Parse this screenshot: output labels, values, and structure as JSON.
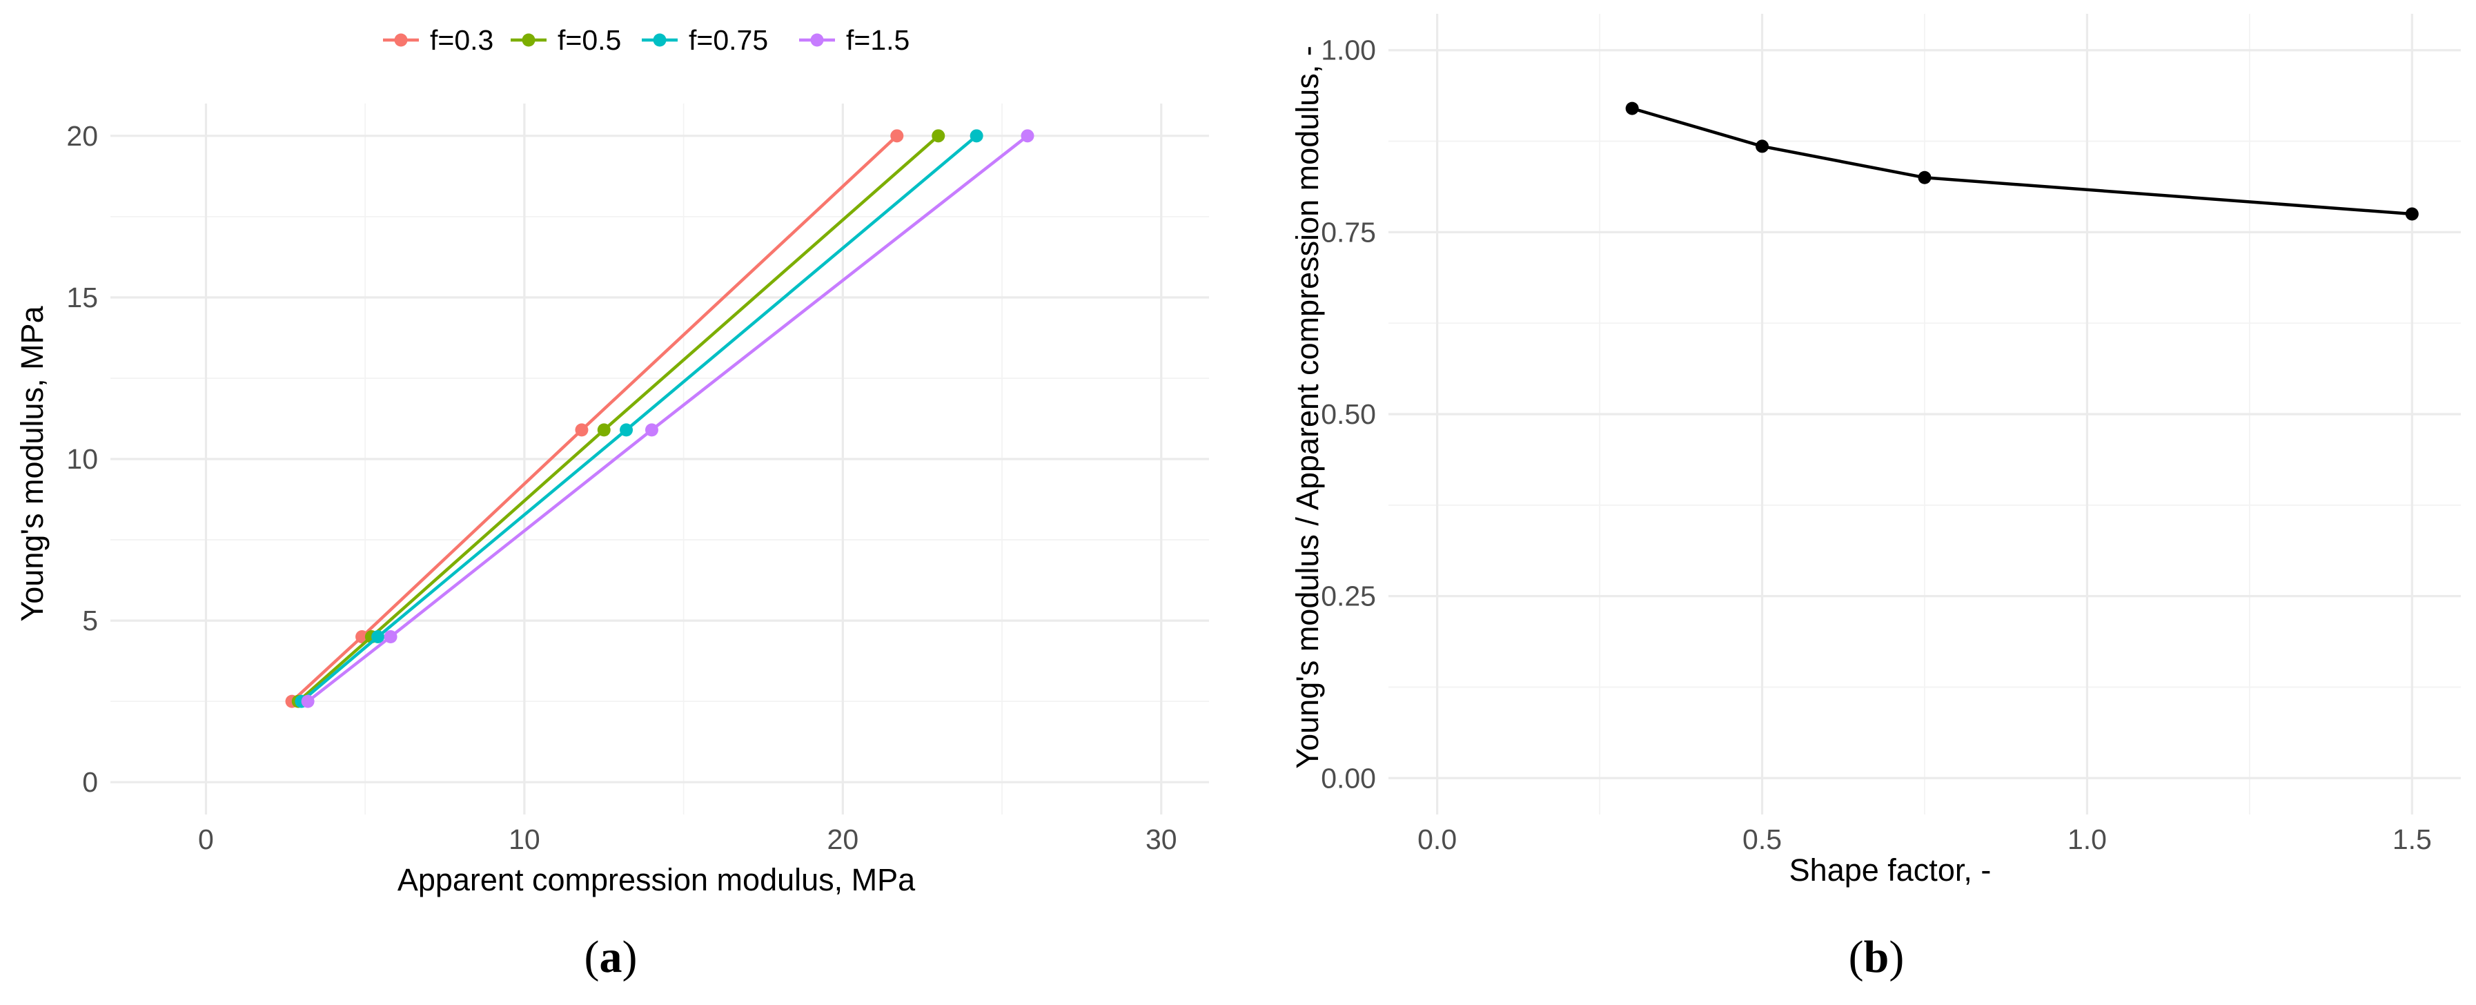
{
  "chart_data": [
    {
      "type": "line",
      "panel_label": "a",
      "xlabel": "Apparent compression modulus, MPa",
      "ylabel": "Young's modulus, MPa",
      "xlim": [
        -3.0,
        31.5
      ],
      "ylim": [
        -1.0,
        21.0
      ],
      "xticks": [
        0,
        10,
        20,
        30
      ],
      "yticks": [
        0,
        5,
        10,
        15,
        20
      ],
      "grid": true,
      "legend_position": "top",
      "series": [
        {
          "name": "f=0.3",
          "color": "#F8766D",
          "x": [
            2.7,
            4.9,
            11.8,
            21.7
          ],
          "y": [
            2.5,
            4.5,
            10.9,
            20
          ]
        },
        {
          "name": "f=0.5",
          "color": "#7CAE00",
          "x": [
            2.9,
            5.2,
            12.5,
            23.0
          ],
          "y": [
            2.5,
            4.5,
            10.9,
            20
          ]
        },
        {
          "name": "f=0.75",
          "color": "#00BFC4",
          "x": [
            3.0,
            5.4,
            13.2,
            24.2
          ],
          "y": [
            2.5,
            4.5,
            10.9,
            20
          ]
        },
        {
          "name": "f=1.5",
          "color": "#C77CFF",
          "x": [
            3.2,
            5.8,
            14.0,
            25.8
          ],
          "y": [
            2.5,
            4.5,
            10.9,
            20
          ]
        }
      ]
    },
    {
      "type": "line",
      "panel_label": "b",
      "xlabel": "Shape factor, -",
      "ylabel": "Young's modulus / Apparent compression modulus, -",
      "xlim": [
        -0.075,
        1.575
      ],
      "ylim": [
        -0.05,
        1.05
      ],
      "xticks": [
        0.0,
        0.5,
        1.0,
        1.5
      ],
      "xtick_labels": [
        "0.0",
        "0.5",
        "1.0",
        "1.5"
      ],
      "yticks": [
        0.0,
        0.25,
        0.5,
        0.75,
        1.0
      ],
      "ytick_labels": [
        "0.00",
        "0.25",
        "0.50",
        "0.75",
        "1.00"
      ],
      "grid": true,
      "series": [
        {
          "color": "#000000",
          "x": [
            0.3,
            0.5,
            0.75,
            1.5
          ],
          "y": [
            0.92,
            0.868,
            0.825,
            0.775
          ]
        }
      ]
    }
  ]
}
